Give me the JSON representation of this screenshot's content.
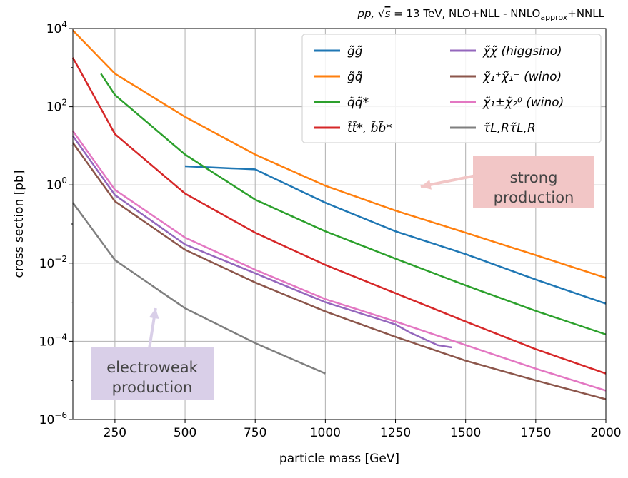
{
  "chart_data": {
    "type": "line",
    "title": "pp, √s = 13 TeV, NLO+NLL - NNLO_approx+NNLL",
    "title_parts": {
      "pre": "pp, √",
      "s": "s",
      "eq": " = 13 TeV, NLO+NLL - NNLO",
      "sub": "approx",
      "post": "+NNLL"
    },
    "xlabel": "particle mass [GeV]",
    "ylabel": "cross section [pb]",
    "xlim": [
      100,
      2000
    ],
    "ylim": [
      1e-06,
      10000.0
    ],
    "y_scale": "log",
    "grid": true,
    "legend_position": "top-right",
    "x_ticks": [
      {
        "value": 250,
        "label": "250"
      },
      {
        "value": 500,
        "label": "500"
      },
      {
        "value": 750,
        "label": "750"
      },
      {
        "value": 1000,
        "label": "1000"
      },
      {
        "value": 1250,
        "label": "1250"
      },
      {
        "value": 1500,
        "label": "1500"
      },
      {
        "value": 1750,
        "label": "1750"
      },
      {
        "value": 2000,
        "label": "2000"
      }
    ],
    "y_ticks": [
      {
        "exp": -6,
        "label": "10",
        "sup": "−6"
      },
      {
        "exp": -4,
        "label": "10",
        "sup": "−4"
      },
      {
        "exp": -2,
        "label": "10",
        "sup": "−2"
      },
      {
        "exp": 0,
        "label": "10",
        "sup": "0"
      },
      {
        "exp": 2,
        "label": "10",
        "sup": "2"
      },
      {
        "exp": 4,
        "label": "10",
        "sup": "4"
      }
    ],
    "series": [
      {
        "name": "g̃g̃",
        "color": "#1f77b4",
        "x": [
          500,
          750,
          1000,
          1250,
          1500,
          1750,
          2000
        ],
        "y": [
          3.0,
          2.5,
          0.35,
          0.065,
          0.017,
          0.0038,
          0.00092
        ]
      },
      {
        "name": "g̃q̃",
        "color": "#ff7f0e",
        "x": [
          100,
          250,
          500,
          750,
          1000,
          1250,
          1500,
          1750,
          2000
        ],
        "y": [
          9000,
          700,
          55,
          6,
          0.95,
          0.22,
          0.06,
          0.016,
          0.0042
        ]
      },
      {
        "name": "q̃q̃*",
        "color": "#2ca02c",
        "x": [
          200,
          250,
          500,
          750,
          1000,
          1250,
          1500,
          1750,
          2000
        ],
        "y": [
          700,
          200,
          6,
          0.42,
          0.065,
          0.013,
          0.0027,
          0.0006,
          0.00015
        ]
      },
      {
        "name": "t̃t̃*, b̃b̃*",
        "color": "#d62728",
        "x": [
          100,
          250,
          500,
          750,
          1000,
          1250,
          1500,
          1750,
          2000
        ],
        "y": [
          1800,
          20,
          0.6,
          0.06,
          0.009,
          0.0017,
          0.00032,
          6.3e-05,
          1.5e-05
        ]
      },
      {
        "name": "χ̃χ̃ (higgsino)",
        "color": "#9467bd",
        "x": [
          100,
          250,
          500,
          750,
          1000,
          1250,
          1300,
          1400,
          1450
        ],
        "y": [
          18,
          0.55,
          0.03,
          0.0055,
          0.001,
          0.00027,
          0.00017,
          8e-05,
          7e-05
        ]
      },
      {
        "name": "χ̃₁⁺χ̃₁⁻ (wino)",
        "color": "#8c564b",
        "x": [
          100,
          250,
          500,
          750,
          1000,
          1250,
          1500,
          1750,
          2000
        ],
        "y": [
          12,
          0.38,
          0.022,
          0.0032,
          0.00058,
          0.00013,
          3.2e-05,
          1e-05,
          3.3e-06
        ]
      },
      {
        "name": "χ̃₁±χ̃₂⁰ (wino)",
        "color": "#e377c2",
        "x": [
          100,
          250,
          500,
          750,
          1000,
          1250,
          1500,
          1750,
          2000
        ],
        "y": [
          24,
          0.75,
          0.045,
          0.0068,
          0.0012,
          0.00032,
          8e-05,
          2e-05,
          5.5e-06
        ]
      },
      {
        "name": "τ̃L,Rτ̃L,R",
        "color": "#7f7f7f",
        "x": [
          100,
          250,
          500,
          750,
          1000
        ],
        "y": [
          0.35,
          0.012,
          0.0007,
          9e-05,
          1.5e-05
        ]
      }
    ],
    "annotations": [
      {
        "text_lines": [
          "strong",
          "production"
        ],
        "box_color": "#f2c6c6",
        "arrow_from": [
          1530,
          1.7
        ],
        "arrow_to": [
          1340,
          0.9
        ]
      },
      {
        "text_lines": [
          "electroweak",
          "production"
        ],
        "box_color": "#d9cfe8",
        "arrow_from": [
          370,
          5e-05
        ],
        "arrow_to": [
          395,
          0.0007
        ]
      }
    ]
  }
}
